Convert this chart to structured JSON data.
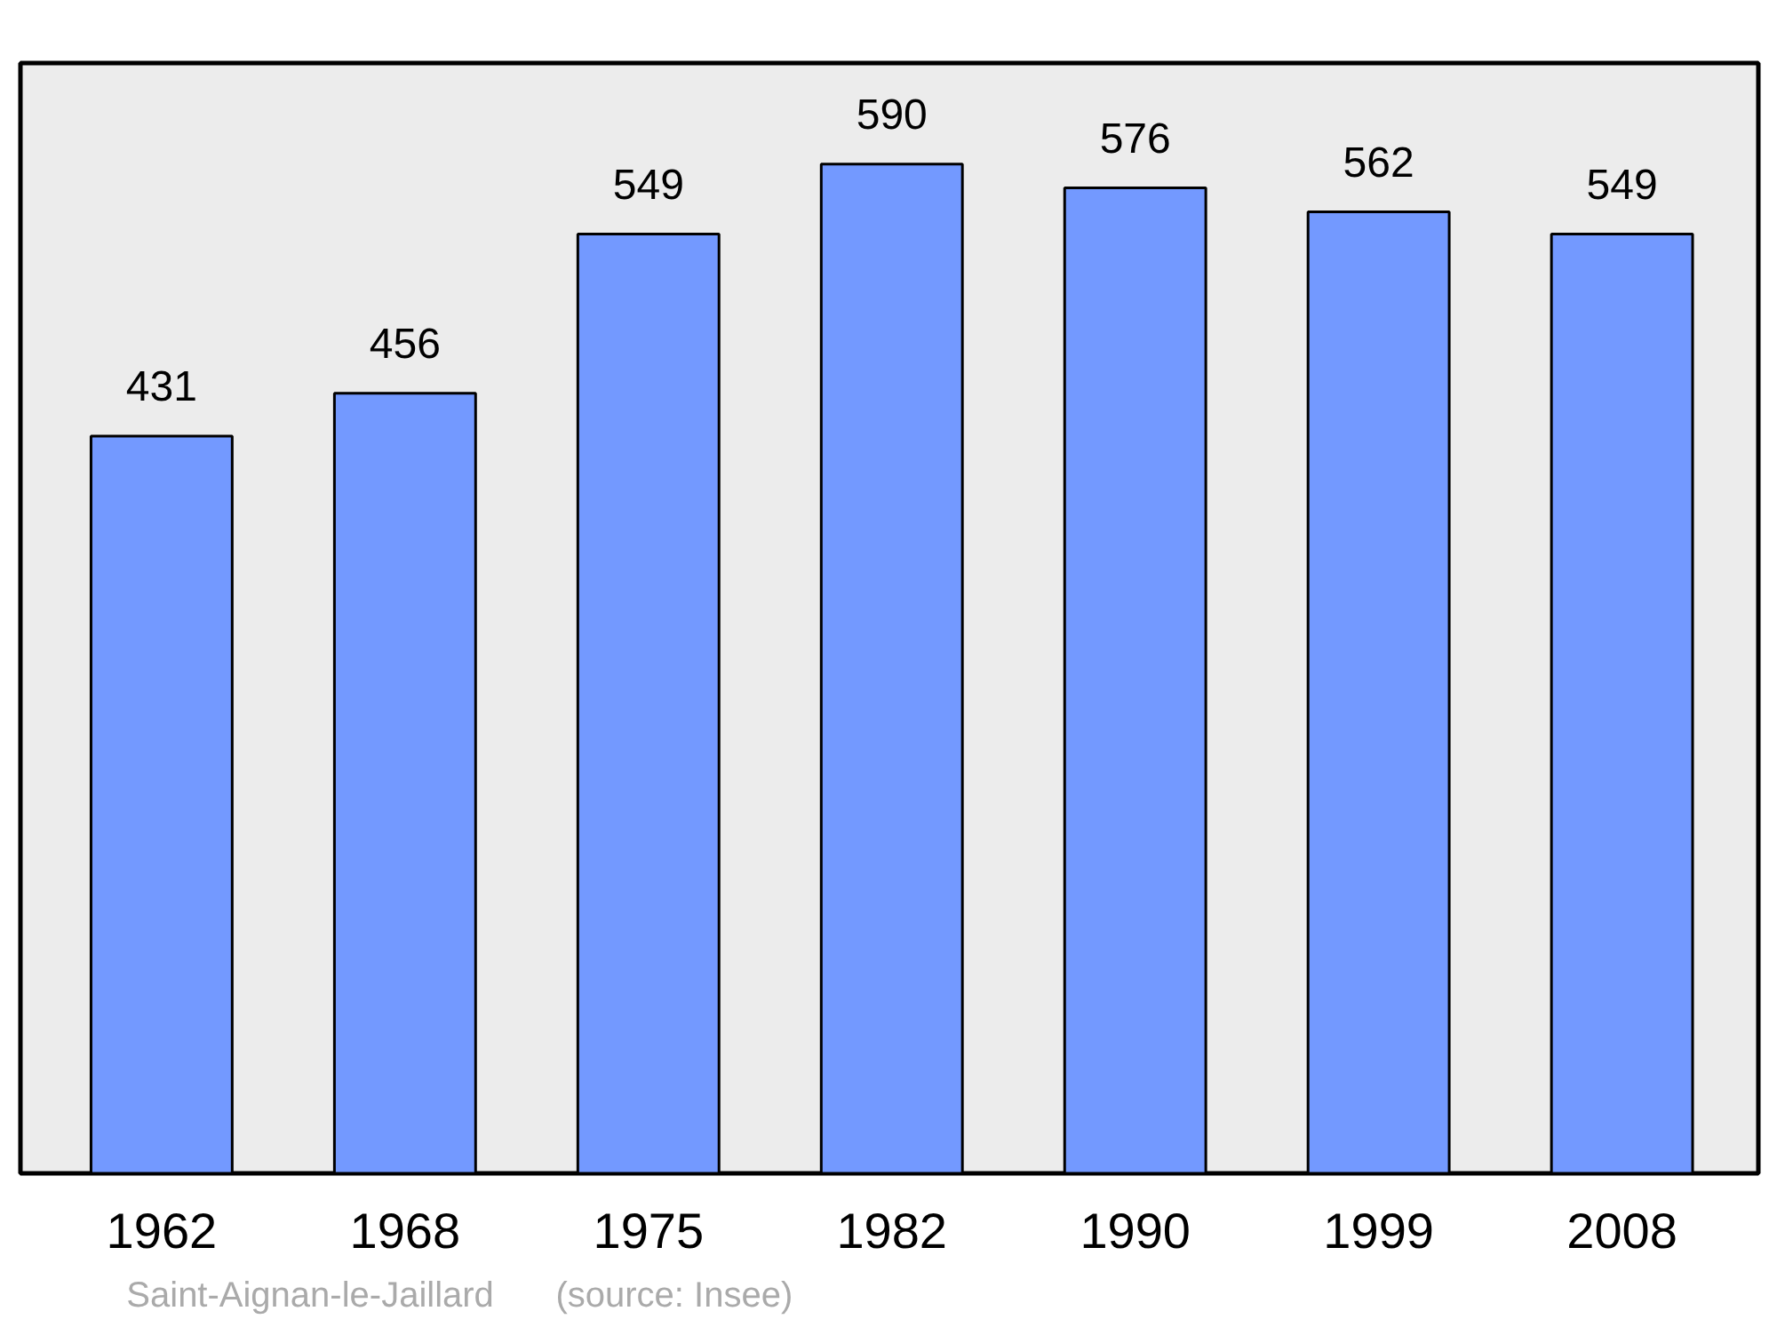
{
  "chart_data": {
    "type": "bar",
    "categories": [
      "1962",
      "1968",
      "1975",
      "1982",
      "1990",
      "1999",
      "2008"
    ],
    "values": [
      431,
      456,
      549,
      590,
      576,
      562,
      549
    ],
    "color": "#7399ff",
    "data_labels": true,
    "annotations": [
      "Saint-Aignan-le-Jaillard",
      "(source: Insee)"
    ]
  }
}
